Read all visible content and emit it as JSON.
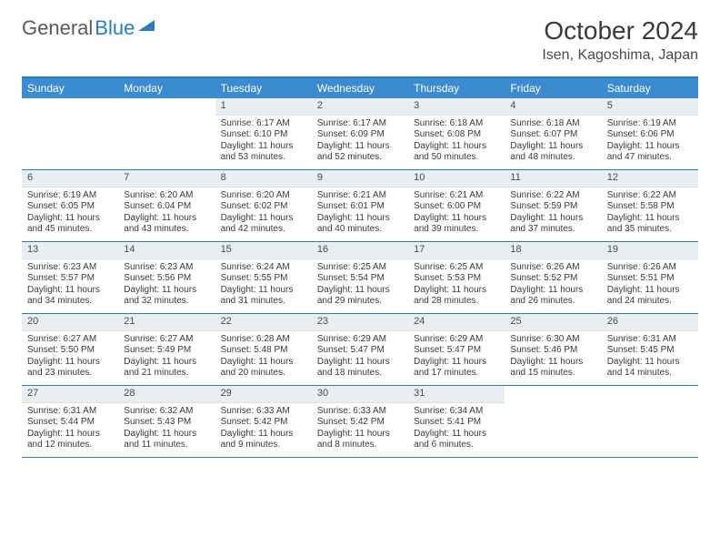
{
  "branding": {
    "word1": "General",
    "word2": "Blue"
  },
  "title": {
    "month": "October 2024",
    "location": "Isen, Kagoshima, Japan"
  },
  "styling": {
    "header_bg": "#3a8bd0",
    "header_text": "#ffffff",
    "accent_border": "#2b7bbf",
    "daynum_bg": "#e9eef2",
    "body_text": "#3a3a3a",
    "font_size_month": 28,
    "font_size_location": 16,
    "font_size_dayheader": 12,
    "font_size_cell": 10,
    "columns": 7
  },
  "day_headers": [
    "Sunday",
    "Monday",
    "Tuesday",
    "Wednesday",
    "Thursday",
    "Friday",
    "Saturday"
  ],
  "weeks": [
    [
      {
        "n": "",
        "lines": []
      },
      {
        "n": "",
        "lines": []
      },
      {
        "n": "1",
        "lines": [
          "Sunrise: 6:17 AM",
          "Sunset: 6:10 PM",
          "Daylight: 11 hours and 53 minutes."
        ]
      },
      {
        "n": "2",
        "lines": [
          "Sunrise: 6:17 AM",
          "Sunset: 6:09 PM",
          "Daylight: 11 hours and 52 minutes."
        ]
      },
      {
        "n": "3",
        "lines": [
          "Sunrise: 6:18 AM",
          "Sunset: 6:08 PM",
          "Daylight: 11 hours and 50 minutes."
        ]
      },
      {
        "n": "4",
        "lines": [
          "Sunrise: 6:18 AM",
          "Sunset: 6:07 PM",
          "Daylight: 11 hours and 48 minutes."
        ]
      },
      {
        "n": "5",
        "lines": [
          "Sunrise: 6:19 AM",
          "Sunset: 6:06 PM",
          "Daylight: 11 hours and 47 minutes."
        ]
      }
    ],
    [
      {
        "n": "6",
        "lines": [
          "Sunrise: 6:19 AM",
          "Sunset: 6:05 PM",
          "Daylight: 11 hours and 45 minutes."
        ]
      },
      {
        "n": "7",
        "lines": [
          "Sunrise: 6:20 AM",
          "Sunset: 6:04 PM",
          "Daylight: 11 hours and 43 minutes."
        ]
      },
      {
        "n": "8",
        "lines": [
          "Sunrise: 6:20 AM",
          "Sunset: 6:02 PM",
          "Daylight: 11 hours and 42 minutes."
        ]
      },
      {
        "n": "9",
        "lines": [
          "Sunrise: 6:21 AM",
          "Sunset: 6:01 PM",
          "Daylight: 11 hours and 40 minutes."
        ]
      },
      {
        "n": "10",
        "lines": [
          "Sunrise: 6:21 AM",
          "Sunset: 6:00 PM",
          "Daylight: 11 hours and 39 minutes."
        ]
      },
      {
        "n": "11",
        "lines": [
          "Sunrise: 6:22 AM",
          "Sunset: 5:59 PM",
          "Daylight: 11 hours and 37 minutes."
        ]
      },
      {
        "n": "12",
        "lines": [
          "Sunrise: 6:22 AM",
          "Sunset: 5:58 PM",
          "Daylight: 11 hours and 35 minutes."
        ]
      }
    ],
    [
      {
        "n": "13",
        "lines": [
          "Sunrise: 6:23 AM",
          "Sunset: 5:57 PM",
          "Daylight: 11 hours and 34 minutes."
        ]
      },
      {
        "n": "14",
        "lines": [
          "Sunrise: 6:23 AM",
          "Sunset: 5:56 PM",
          "Daylight: 11 hours and 32 minutes."
        ]
      },
      {
        "n": "15",
        "lines": [
          "Sunrise: 6:24 AM",
          "Sunset: 5:55 PM",
          "Daylight: 11 hours and 31 minutes."
        ]
      },
      {
        "n": "16",
        "lines": [
          "Sunrise: 6:25 AM",
          "Sunset: 5:54 PM",
          "Daylight: 11 hours and 29 minutes."
        ]
      },
      {
        "n": "17",
        "lines": [
          "Sunrise: 6:25 AM",
          "Sunset: 5:53 PM",
          "Daylight: 11 hours and 28 minutes."
        ]
      },
      {
        "n": "18",
        "lines": [
          "Sunrise: 6:26 AM",
          "Sunset: 5:52 PM",
          "Daylight: 11 hours and 26 minutes."
        ]
      },
      {
        "n": "19",
        "lines": [
          "Sunrise: 6:26 AM",
          "Sunset: 5:51 PM",
          "Daylight: 11 hours and 24 minutes."
        ]
      }
    ],
    [
      {
        "n": "20",
        "lines": [
          "Sunrise: 6:27 AM",
          "Sunset: 5:50 PM",
          "Daylight: 11 hours and 23 minutes."
        ]
      },
      {
        "n": "21",
        "lines": [
          "Sunrise: 6:27 AM",
          "Sunset: 5:49 PM",
          "Daylight: 11 hours and 21 minutes."
        ]
      },
      {
        "n": "22",
        "lines": [
          "Sunrise: 6:28 AM",
          "Sunset: 5:48 PM",
          "Daylight: 11 hours and 20 minutes."
        ]
      },
      {
        "n": "23",
        "lines": [
          "Sunrise: 6:29 AM",
          "Sunset: 5:47 PM",
          "Daylight: 11 hours and 18 minutes."
        ]
      },
      {
        "n": "24",
        "lines": [
          "Sunrise: 6:29 AM",
          "Sunset: 5:47 PM",
          "Daylight: 11 hours and 17 minutes."
        ]
      },
      {
        "n": "25",
        "lines": [
          "Sunrise: 6:30 AM",
          "Sunset: 5:46 PM",
          "Daylight: 11 hours and 15 minutes."
        ]
      },
      {
        "n": "26",
        "lines": [
          "Sunrise: 6:31 AM",
          "Sunset: 5:45 PM",
          "Daylight: 11 hours and 14 minutes."
        ]
      }
    ],
    [
      {
        "n": "27",
        "lines": [
          "Sunrise: 6:31 AM",
          "Sunset: 5:44 PM",
          "Daylight: 11 hours and 12 minutes."
        ]
      },
      {
        "n": "28",
        "lines": [
          "Sunrise: 6:32 AM",
          "Sunset: 5:43 PM",
          "Daylight: 11 hours and 11 minutes."
        ]
      },
      {
        "n": "29",
        "lines": [
          "Sunrise: 6:33 AM",
          "Sunset: 5:42 PM",
          "Daylight: 11 hours and 9 minutes."
        ]
      },
      {
        "n": "30",
        "lines": [
          "Sunrise: 6:33 AM",
          "Sunset: 5:42 PM",
          "Daylight: 11 hours and 8 minutes."
        ]
      },
      {
        "n": "31",
        "lines": [
          "Sunrise: 6:34 AM",
          "Sunset: 5:41 PM",
          "Daylight: 11 hours and 6 minutes."
        ]
      },
      {
        "n": "",
        "lines": []
      },
      {
        "n": "",
        "lines": []
      }
    ]
  ]
}
